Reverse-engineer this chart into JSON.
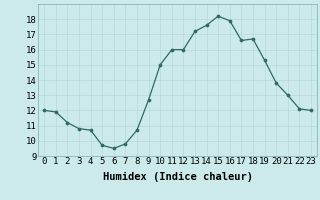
{
  "x": [
    0,
    1,
    2,
    3,
    4,
    5,
    6,
    7,
    8,
    9,
    10,
    11,
    12,
    13,
    14,
    15,
    16,
    17,
    18,
    19,
    20,
    21,
    22,
    23
  ],
  "y": [
    12,
    11.9,
    11.2,
    10.8,
    10.7,
    9.7,
    9.5,
    9.8,
    10.7,
    12.7,
    15.0,
    16.0,
    16.0,
    17.2,
    17.6,
    18.2,
    17.9,
    16.6,
    16.7,
    15.3,
    13.8,
    13.0,
    12.1,
    12.0
  ],
  "line_color": "#2e6b5e",
  "marker_color": "#2e6b5e",
  "bg_color": "#cdeaea",
  "grid_color": "#b8d8d5",
  "xlabel": "Humidex (Indice chaleur)",
  "xlim": [
    -0.5,
    23.5
  ],
  "ylim": [
    9,
    19
  ],
  "yticks": [
    9,
    10,
    11,
    12,
    13,
    14,
    15,
    16,
    17,
    18
  ],
  "xticks": [
    0,
    1,
    2,
    3,
    4,
    5,
    6,
    7,
    8,
    9,
    10,
    11,
    12,
    13,
    14,
    15,
    16,
    17,
    18,
    19,
    20,
    21,
    22,
    23
  ],
  "xtick_labels": [
    "0",
    "1",
    "2",
    "3",
    "4",
    "5",
    "6",
    "7",
    "8",
    "9",
    "10",
    "11",
    "12",
    "13",
    "14",
    "15",
    "16",
    "17",
    "18",
    "19",
    "20",
    "21",
    "22",
    "23"
  ],
  "font_size": 6.5,
  "xlabel_font_size": 7.5
}
